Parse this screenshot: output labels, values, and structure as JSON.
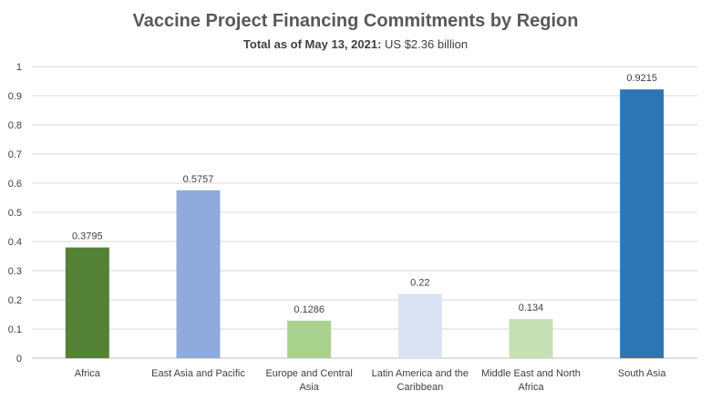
{
  "chart_data": {
    "type": "bar",
    "title": "Vaccine Project Financing Commitments by Region",
    "subtitle_bold": "Total as of May 13, 2021:",
    "subtitle_rest": " US $2.36 billion",
    "categories": [
      "Africa",
      "East Asia and Pacific",
      "Europe and Central Asia",
      "Latin America and the Caribbean",
      "Middle East and North Africa",
      "South Asia"
    ],
    "category_lines": [
      [
        "Africa"
      ],
      [
        "East Asia and Pacific"
      ],
      [
        "Europe and Central",
        "Asia"
      ],
      [
        "Latin America and the",
        "Caribbean"
      ],
      [
        "Middle East and North",
        "Africa"
      ],
      [
        "South Asia"
      ]
    ],
    "values": [
      0.3795,
      0.5757,
      0.1286,
      0.22,
      0.134,
      0.9215
    ],
    "value_labels": [
      "0.3795",
      "0.5757",
      "0.1286",
      "0.22",
      "0.134",
      "0.9215"
    ],
    "colors": [
      "#538135",
      "#8faadc",
      "#a9d18e",
      "#dae3f3",
      "#c5e0b4",
      "#2e75b6"
    ],
    "ylim": [
      0,
      1
    ],
    "yticks": [
      "0",
      "0.1",
      "0.2",
      "0.3",
      "0.4",
      "0.5",
      "0.6",
      "0.7",
      "0.8",
      "0.9",
      "1"
    ],
    "grid": true,
    "xlabel": "",
    "ylabel": ""
  }
}
